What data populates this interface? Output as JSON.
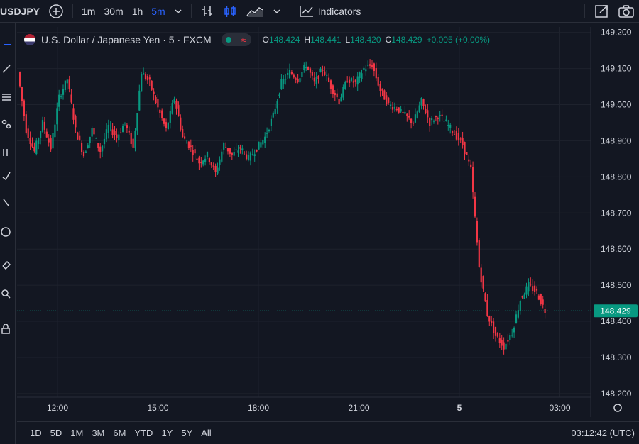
{
  "toolbar": {
    "symbol": "USDJPY",
    "intervals": [
      "1m",
      "30m",
      "1h",
      "5m"
    ],
    "active_interval": "5m",
    "indicators_label": "Indicators"
  },
  "legend": {
    "title": "U.S. Dollar / Japanese Yen · 5 · FXCM",
    "open_key": "O",
    "open": "148.424",
    "high_key": "H",
    "high": "148.441",
    "low_key": "L",
    "low": "148.420",
    "close_key": "C",
    "close": "148.429",
    "change": "+0.005 (+0.00%)"
  },
  "chart_data": {
    "type": "candlestick",
    "y_ticks": [
      "149.200",
      "149.100",
      "149.000",
      "148.900",
      "148.800",
      "148.700",
      "148.600",
      "148.500",
      "148.400",
      "148.300",
      "148.200"
    ],
    "ylim": [
      148.19,
      149.215
    ],
    "x_ticks": [
      "12:00",
      "15:00",
      "18:00",
      "21:00",
      "5",
      "03:00"
    ],
    "last_price": 148.429,
    "last_price_label": "148.429",
    "up_color": "#089981",
    "down_color": "#f23645",
    "path": [
      [
        0,
        149.09
      ],
      [
        4,
        148.93
      ],
      [
        8,
        148.87
      ],
      [
        12,
        148.95
      ],
      [
        16,
        148.88
      ],
      [
        20,
        149.02
      ],
      [
        24,
        149.07
      ],
      [
        28,
        148.93
      ],
      [
        32,
        148.86
      ],
      [
        36,
        148.93
      ],
      [
        40,
        148.87
      ],
      [
        44,
        148.94
      ],
      [
        48,
        148.91
      ],
      [
        52,
        148.95
      ],
      [
        56,
        148.88
      ],
      [
        60,
        149.09
      ],
      [
        64,
        149.06
      ],
      [
        68,
        148.99
      ],
      [
        72,
        148.93
      ],
      [
        76,
        149.02
      ],
      [
        80,
        148.91
      ],
      [
        84,
        148.88
      ],
      [
        88,
        148.84
      ],
      [
        92,
        148.86
      ],
      [
        96,
        148.81
      ],
      [
        100,
        148.89
      ],
      [
        104,
        148.86
      ],
      [
        108,
        148.88
      ],
      [
        112,
        148.85
      ],
      [
        116,
        148.88
      ],
      [
        120,
        148.91
      ],
      [
        124,
        148.97
      ],
      [
        128,
        149.06
      ],
      [
        132,
        149.09
      ],
      [
        136,
        149.07
      ],
      [
        140,
        149.11
      ],
      [
        144,
        149.06
      ],
      [
        148,
        149.1
      ],
      [
        152,
        149.05
      ],
      [
        156,
        149.01
      ],
      [
        160,
        149.07
      ],
      [
        164,
        149.06
      ],
      [
        168,
        149.1
      ],
      [
        172,
        149.11
      ],
      [
        176,
        149.04
      ],
      [
        180,
        149.0
      ],
      [
        184,
        148.99
      ],
      [
        188,
        148.97
      ],
      [
        192,
        148.95
      ],
      [
        196,
        149.01
      ],
      [
        200,
        148.95
      ],
      [
        204,
        148.97
      ],
      [
        208,
        148.95
      ],
      [
        212,
        148.92
      ],
      [
        216,
        148.89
      ],
      [
        220,
        148.82
      ],
      [
        224,
        148.55
      ],
      [
        228,
        148.42
      ],
      [
        232,
        148.36
      ],
      [
        236,
        148.33
      ],
      [
        240,
        148.37
      ],
      [
        244,
        148.46
      ],
      [
        248,
        148.5
      ],
      [
        252,
        148.48
      ],
      [
        256,
        148.43
      ]
    ]
  },
  "bottom": {
    "ranges": [
      "1D",
      "5D",
      "1M",
      "3M",
      "6M",
      "YTD",
      "1Y",
      "5Y",
      "All"
    ],
    "clock": "03:12:42 (UTC)"
  }
}
